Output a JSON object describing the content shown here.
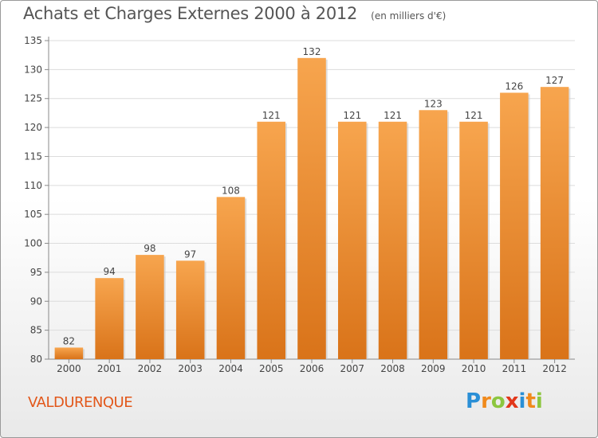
{
  "chart_data": {
    "type": "bar",
    "title": "Achats et Charges Externes 2000 à 2012",
    "subtitle": "(en milliers d'€)",
    "categories": [
      "2000",
      "2001",
      "2002",
      "2003",
      "2004",
      "2005",
      "2006",
      "2007",
      "2008",
      "2009",
      "2010",
      "2011",
      "2012"
    ],
    "values": [
      82,
      94,
      98,
      97,
      108,
      121,
      132,
      121,
      121,
      123,
      121,
      126,
      127
    ],
    "data_labels": [
      "82",
      "94",
      "98",
      "97",
      "108",
      "121",
      "132",
      "121",
      "121",
      "123",
      "121",
      "126",
      "127"
    ],
    "ylim": [
      80,
      135
    ],
    "yticks": [
      80,
      85,
      90,
      95,
      100,
      105,
      110,
      115,
      120,
      125,
      130,
      135
    ],
    "grid": true,
    "legend": "none",
    "bar_color_top": "#f7a54e",
    "bar_color_bottom": "#d97319"
  },
  "footer": {
    "place": "VALDURENQUE",
    "brand_letters": [
      "P",
      "r",
      "o",
      "x",
      "i",
      "t",
      "i"
    ],
    "brand_colors": [
      "#2a8fd6",
      "#f08a1c",
      "#8cc63f",
      "#e2371a",
      "#2a8fd6",
      "#f08a1c",
      "#8cc63f"
    ]
  },
  "colors": {
    "place_text": "#e2571a",
    "title_text": "#555555"
  }
}
